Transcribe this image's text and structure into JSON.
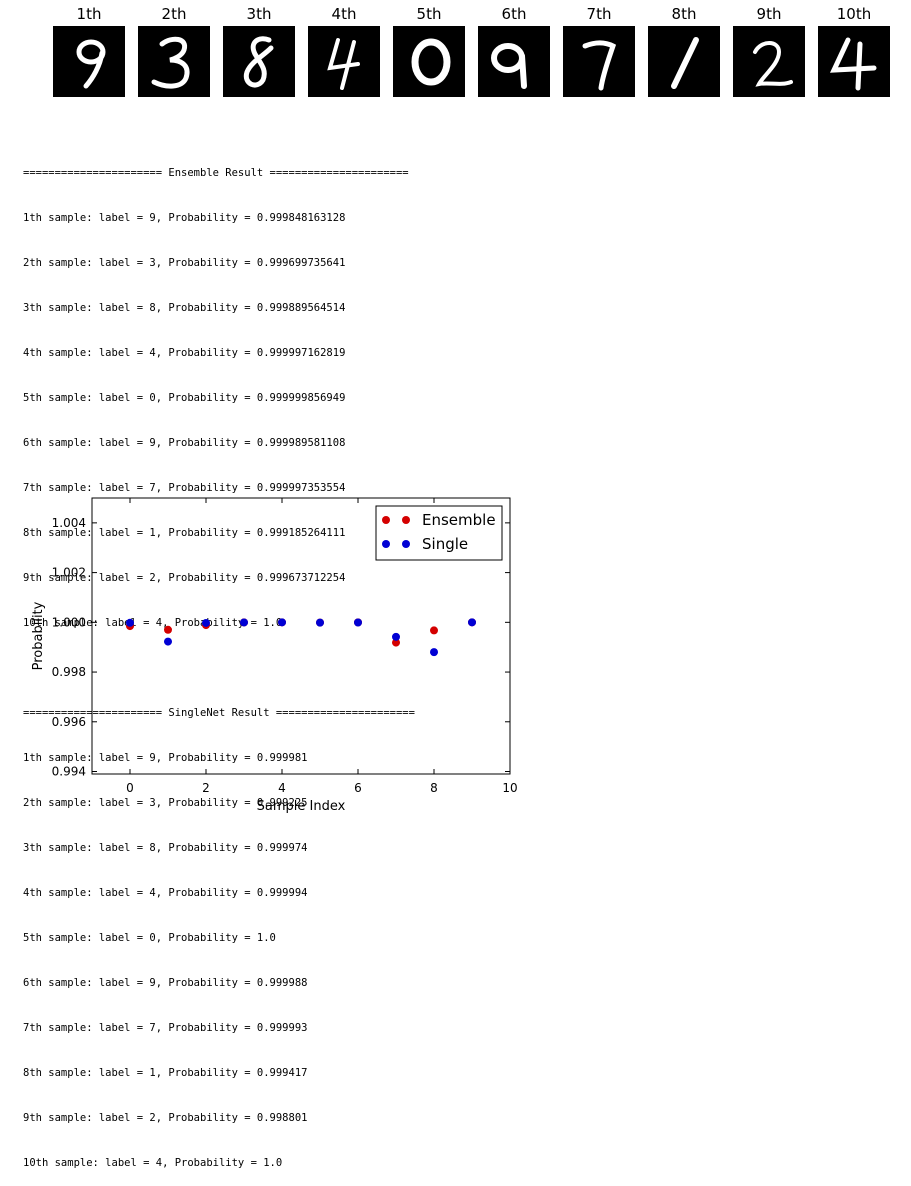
{
  "thumbnails": [
    {
      "title": "1th",
      "digit": "9"
    },
    {
      "title": "2th",
      "digit": "3"
    },
    {
      "title": "3th",
      "digit": "8"
    },
    {
      "title": "4th",
      "digit": "4"
    },
    {
      "title": "5th",
      "digit": "0"
    },
    {
      "title": "6th",
      "digit": "9"
    },
    {
      "title": "7th",
      "digit": "7"
    },
    {
      "title": "8th",
      "digit": "1"
    },
    {
      "title": "9th",
      "digit": "2"
    },
    {
      "title": "10th",
      "digit": "4"
    }
  ],
  "console": {
    "ensemble_header": "====================== Ensemble Result ======================",
    "ensemble_lines": [
      "1th sample: label = 9, Probability = 0.999848163128",
      "2th sample: label = 3, Probability = 0.999699735641",
      "3th sample: label = 8, Probability = 0.999889564514",
      "4th sample: label = 4, Probability = 0.999997162819",
      "5th sample: label = 0, Probability = 0.999999856949",
      "6th sample: label = 9, Probability = 0.999989581108",
      "7th sample: label = 7, Probability = 0.999997353554",
      "8th sample: label = 1, Probability = 0.999185264111",
      "9th sample: label = 2, Probability = 0.999673712254",
      "10th sample: label = 4, Probability = 1.0"
    ],
    "single_header": "====================== SingleNet Result ======================",
    "single_lines": [
      "1th sample: label = 9, Probability = 0.999981",
      "2th sample: label = 3, Probability = 0.999225",
      "3th sample: label = 8, Probability = 0.999974",
      "4th sample: label = 4, Probability = 0.999994",
      "5th sample: label = 0, Probability = 1.0",
      "6th sample: label = 9, Probability = 0.999988",
      "7th sample: label = 7, Probability = 0.999993",
      "8th sample: label = 1, Probability = 0.999417",
      "9th sample: label = 2, Probability = 0.998801",
      "10th sample: label = 4, Probability = 1.0"
    ]
  },
  "chart_data": {
    "type": "scatter",
    "xlabel": "Sample Index",
    "ylabel": "Probability",
    "xlim": [
      -1,
      10
    ],
    "ylim": [
      0.9939,
      1.005
    ],
    "xticks": [
      0,
      2,
      4,
      6,
      8,
      10
    ],
    "xtick_labels": [
      "0",
      "2",
      "4",
      "6",
      "8",
      "10"
    ],
    "yticks": [
      0.994,
      0.996,
      0.998,
      1.0,
      1.002,
      1.004
    ],
    "ytick_labels": [
      "0.994",
      "0.996",
      "0.998",
      "1.000",
      "1.002",
      "1.004"
    ],
    "grid": false,
    "legend_position": "top-right",
    "series": [
      {
        "name": "Ensemble",
        "color": "#d40000",
        "x": [
          0,
          1,
          2,
          3,
          4,
          5,
          6,
          7,
          8,
          9
        ],
        "values": [
          0.999848163128,
          0.999699735641,
          0.999889564514,
          0.999997162819,
          0.999999856949,
          0.999989581108,
          0.999997353554,
          0.999185264111,
          0.999673712254,
          1.0
        ]
      },
      {
        "name": "Single",
        "color": "#0000d4",
        "x": [
          0,
          1,
          2,
          3,
          4,
          5,
          6,
          7,
          8,
          9
        ],
        "values": [
          0.999981,
          0.999225,
          0.999974,
          0.999994,
          1.0,
          0.999988,
          0.999993,
          0.999417,
          0.998801,
          1.0
        ]
      }
    ]
  }
}
